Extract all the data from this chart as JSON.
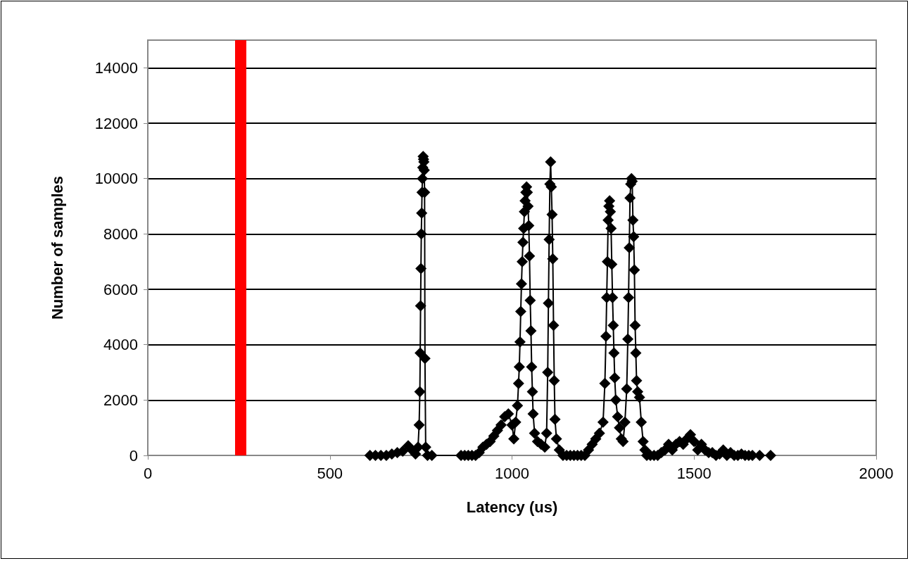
{
  "chart_data": {
    "type": "line",
    "xlabel": "Latency (us)",
    "ylabel": "Number of samples",
    "xlim": [
      0,
      2000
    ],
    "xticks": [
      0,
      500,
      1000,
      1500,
      2000
    ],
    "ylim": [
      0,
      15000
    ],
    "yticks": [
      0,
      2000,
      4000,
      6000,
      8000,
      10000,
      12000,
      14000
    ],
    "grid": "y",
    "marker": "diamond",
    "line_style": "solid",
    "ref_lines": [
      {
        "axis": "x",
        "value": 255,
        "label": null,
        "color": "#ff0000"
      }
    ],
    "series": [
      {
        "color": "#000000",
        "x": [
          610,
          625,
          640,
          655,
          670,
          685,
          700,
          715,
          725,
          735,
          742,
          745,
          747,
          748,
          749,
          750,
          751,
          752,
          753,
          754,
          755,
          756,
          757,
          758,
          759,
          760,
          761,
          763,
          768,
          780,
          860,
          870,
          880,
          890,
          900,
          910,
          920,
          930,
          940,
          950,
          960,
          970,
          980,
          990,
          1000,
          1005,
          1010,
          1015,
          1018,
          1020,
          1022,
          1024,
          1026,
          1028,
          1030,
          1032,
          1034,
          1036,
          1038,
          1040,
          1042,
          1044,
          1046,
          1048,
          1050,
          1052,
          1054,
          1056,
          1058,
          1062,
          1070,
          1080,
          1090,
          1095,
          1098,
          1100,
          1102,
          1104,
          1106,
          1108,
          1110,
          1112,
          1114,
          1116,
          1118,
          1122,
          1130,
          1140,
          1150,
          1160,
          1170,
          1180,
          1190,
          1200,
          1210,
          1220,
          1230,
          1240,
          1250,
          1255,
          1258,
          1260,
          1262,
          1264,
          1266,
          1268,
          1270,
          1272,
          1274,
          1276,
          1278,
          1280,
          1282,
          1285,
          1290,
          1295,
          1300,
          1305,
          1310,
          1315,
          1318,
          1320,
          1322,
          1324,
          1326,
          1328,
          1330,
          1332,
          1334,
          1336,
          1338,
          1340,
          1342,
          1345,
          1350,
          1355,
          1360,
          1365,
          1370,
          1380,
          1390,
          1400,
          1410,
          1420,
          1430,
          1440,
          1450,
          1460,
          1470,
          1480,
          1490,
          1500,
          1510,
          1520,
          1530,
          1540,
          1550,
          1560,
          1570,
          1580,
          1590,
          1600,
          1610,
          1620,
          1630,
          1640,
          1650,
          1660,
          1680,
          1710
        ],
        "values": [
          0,
          0,
          0,
          0,
          50,
          100,
          150,
          350,
          200,
          50,
          300,
          1100,
          2300,
          3700,
          5400,
          6750,
          8000,
          8750,
          9500,
          10000,
          10400,
          10800,
          10700,
          10600,
          10300,
          9500,
          3500,
          300,
          0,
          0,
          0,
          0,
          0,
          0,
          0,
          100,
          300,
          400,
          500,
          700,
          900,
          1100,
          1400,
          1500,
          1100,
          600,
          1200,
          1800,
          2600,
          3200,
          4100,
          5200,
          6200,
          7000,
          7700,
          8200,
          8800,
          9200,
          9500,
          9700,
          9500,
          9000,
          8300,
          7200,
          5600,
          4500,
          3200,
          2300,
          1500,
          800,
          500,
          400,
          300,
          800,
          3000,
          5500,
          7800,
          9800,
          10600,
          9700,
          8700,
          7100,
          4700,
          2700,
          1300,
          600,
          200,
          0,
          0,
          0,
          0,
          0,
          0,
          0,
          200,
          400,
          600,
          800,
          1200,
          2600,
          4300,
          5700,
          7000,
          8500,
          9000,
          9200,
          8800,
          8200,
          6900,
          5700,
          4700,
          3700,
          2800,
          2000,
          1400,
          1000,
          600,
          500,
          1200,
          2400,
          4200,
          5700,
          7500,
          9300,
          9800,
          10000,
          9900,
          8500,
          7900,
          6700,
          4700,
          3700,
          2700,
          2300,
          2100,
          1200,
          500,
          200,
          0,
          0,
          0,
          0,
          100,
          200,
          400,
          200,
          400,
          500,
          400,
          600,
          750,
          500,
          200,
          400,
          200,
          100,
          100,
          0,
          50,
          200,
          0,
          100,
          0,
          0,
          50,
          0,
          0,
          0,
          0,
          0
        ]
      }
    ]
  }
}
